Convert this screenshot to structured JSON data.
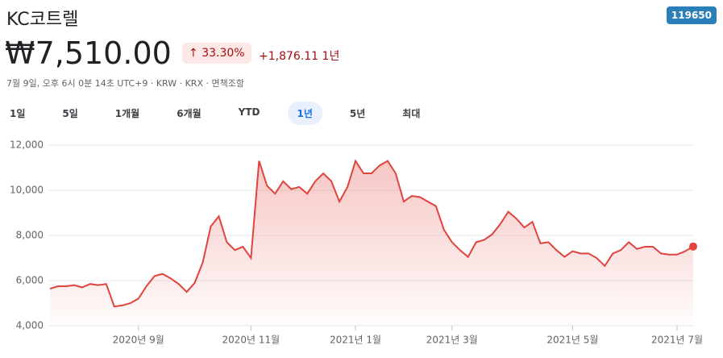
{
  "header": {
    "title": "KC코트렐",
    "ticker": "119650",
    "price": "₩7,510.00",
    "change_pct": "33.30%",
    "change_abs": "+1,876.11",
    "period": "1년",
    "subtitle": "7월 9일, 오후 6시 0분 14초 UTC+9 · KRW · KRX · 면책조항"
  },
  "tabs": [
    "1일",
    "5일",
    "1개월",
    "6개월",
    "YTD",
    "1년",
    "5년",
    "최대"
  ],
  "selected_tab": 5,
  "chart_data": {
    "type": "line",
    "color": "#e0443c",
    "categories": [
      null,
      null,
      null,
      null,
      null,
      null,
      null,
      null,
      null,
      null,
      null,
      "2020년 9월",
      null,
      null,
      null,
      null,
      null,
      null,
      null,
      null,
      null,
      null,
      null,
      null,
      null,
      "2020년 11월",
      null,
      null,
      null,
      null,
      null,
      null,
      null,
      null,
      null,
      null,
      null,
      null,
      "2021년 1월",
      null,
      null,
      null,
      null,
      null,
      null,
      null,
      null,
      null,
      null,
      null,
      "2021년 3월",
      null,
      null,
      null,
      null,
      null,
      null,
      null,
      null,
      null,
      null,
      null,
      null,
      null,
      null,
      "2021년 5월",
      null,
      null,
      null,
      null,
      null,
      null,
      null,
      null,
      null,
      null,
      null,
      null,
      "2021년 7월",
      null,
      null
    ],
    "values": [
      5640,
      5750,
      5750,
      5800,
      5700,
      5850,
      5800,
      5850,
      4850,
      4900,
      5000,
      5200,
      5750,
      6200,
      6300,
      6100,
      5850,
      5500,
      5900,
      6800,
      8400,
      8850,
      7700,
      7350,
      7500,
      7000,
      11300,
      10200,
      9850,
      10400,
      10050,
      10150,
      9850,
      10400,
      10750,
      10400,
      9500,
      10150,
      11300,
      10750,
      10750,
      11100,
      11300,
      10750,
      9500,
      9750,
      9700,
      9500,
      9300,
      8250,
      7700,
      7350,
      7050,
      7700,
      7800,
      8050,
      8500,
      9050,
      8750,
      8350,
      8600,
      7650,
      7700,
      7350,
      7050,
      7300,
      7200,
      7200,
      7000,
      6650,
      7200,
      7350,
      7700,
      7400,
      7500,
      7500,
      7200,
      7150,
      7150,
      7300,
      7510
    ],
    "ylim": [
      4000,
      12000
    ],
    "yticks": [
      {
        "value": 4000,
        "label": "4,000"
      },
      {
        "value": 6000,
        "label": "6,000"
      },
      {
        "value": 8000,
        "label": "8,000"
      },
      {
        "value": 10000,
        "label": "10,000"
      },
      {
        "value": 12000,
        "label": "12,000"
      }
    ],
    "grid": true
  }
}
